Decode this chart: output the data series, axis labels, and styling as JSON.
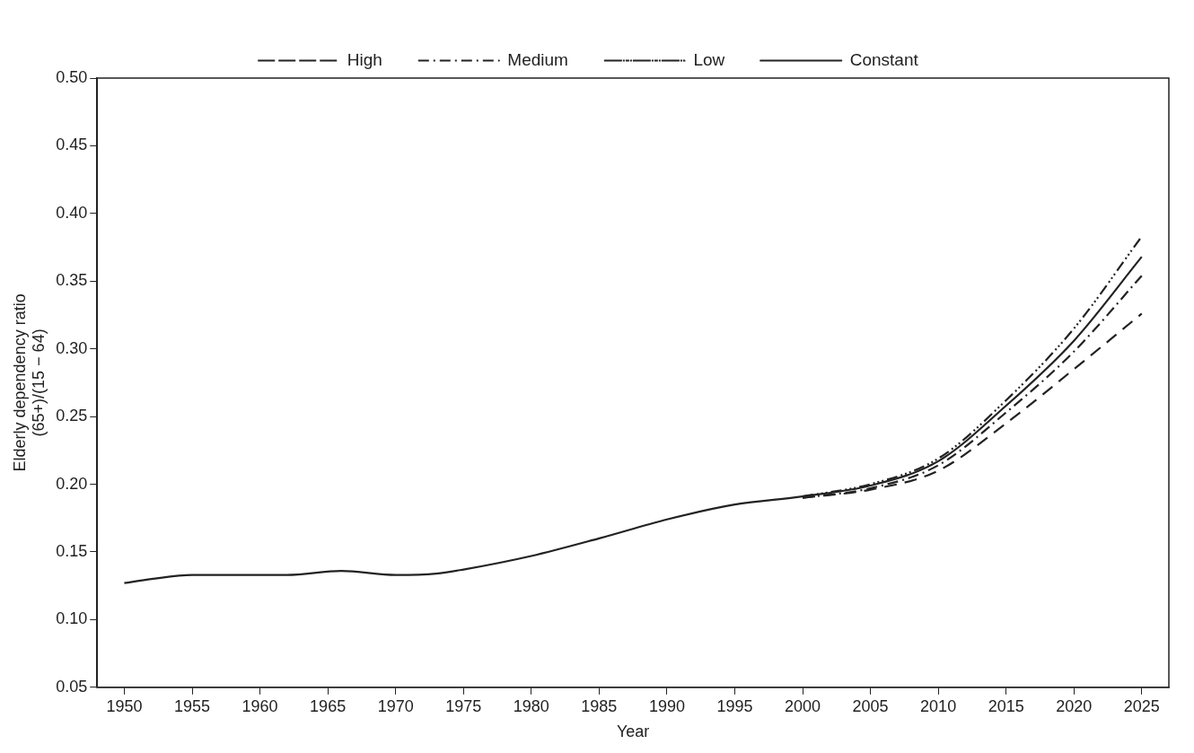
{
  "chart_data": {
    "type": "line",
    "xlabel": "Year",
    "ylabel": "Elderly dependency ratio\n(65+)/(15 − 64)",
    "xlim": [
      1948,
      2027
    ],
    "xticks": [
      1950,
      1955,
      1960,
      1965,
      1970,
      1975,
      1980,
      1985,
      1990,
      1995,
      2000,
      2005,
      2010,
      2015,
      2020,
      2025
    ],
    "ylim": [
      0.05,
      0.5
    ],
    "yticks": [
      0.05,
      {
        "value": 0.1,
        "label": "0.10"
      },
      0.15,
      {
        "value": 0.2,
        "label": "0.20"
      },
      0.25,
      {
        "value": 0.3,
        "label": "0.30"
      },
      0.35,
      {
        "value": 0.4,
        "label": "0.40"
      },
      0.45,
      {
        "value": 0.5,
        "label": "0.50"
      }
    ],
    "grid": false,
    "legend": "top",
    "marker": "none",
    "series": [
      {
        "name": "High",
        "color": "#222222",
        "line_style": "dashed",
        "x": [
          2000,
          2005,
          2010,
          2015,
          2020,
          2025
        ],
        "values": [
          0.19,
          0.196,
          0.21,
          0.245,
          0.285,
          0.326
        ]
      },
      {
        "name": "Medium",
        "color": "#222222",
        "line_style": "dashdot",
        "x": [
          2000,
          2005,
          2010,
          2015,
          2020,
          2025
        ],
        "values": [
          0.19,
          0.197,
          0.214,
          0.253,
          0.298,
          0.354
        ]
      },
      {
        "name": "Low",
        "color": "#222222",
        "line_style": "dashdotdot",
        "x": [
          2000,
          2005,
          2010,
          2015,
          2020,
          2025
        ],
        "values": [
          0.191,
          0.2,
          0.219,
          0.262,
          0.315,
          0.383
        ]
      },
      {
        "name": "Constant",
        "color": "#222222",
        "line_style": "solid",
        "x": [
          1950,
          1952,
          1955,
          1960,
          1962,
          1966,
          1970,
          1973,
          1975,
          1980,
          1985,
          1990,
          1995,
          2000,
          2005,
          2010,
          2015,
          2020,
          2025
        ],
        "values": [
          0.127,
          0.13,
          0.133,
          0.133,
          0.133,
          0.136,
          0.133,
          0.134,
          0.137,
          0.147,
          0.16,
          0.174,
          0.185,
          0.191,
          0.199,
          0.217,
          0.258,
          0.306,
          0.368
        ]
      }
    ]
  }
}
